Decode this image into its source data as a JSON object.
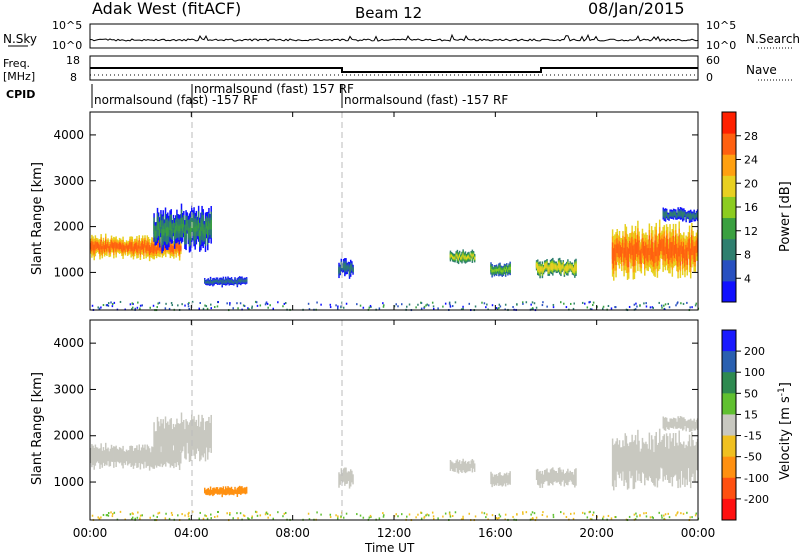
{
  "header": {
    "station": "Adak West (fitACF)",
    "beam": "Beam 12",
    "date": "08/Jan/2015"
  },
  "top_panel": {
    "left_label": "N.Sky",
    "left_ticks": [
      "10^5",
      "10^0"
    ],
    "right_label": "N.Search",
    "right_ticks": [
      "10^5",
      "10^0"
    ]
  },
  "freq_panel": {
    "left_label_1": "Freq.",
    "left_label_2": "[MHz]",
    "left_ticks": [
      "18",
      "8"
    ],
    "right_label": "Nave",
    "right_ticks": [
      "60",
      "0"
    ]
  },
  "cpid": {
    "label": "CPID",
    "segments": [
      {
        "text": "normalsound (fast) -157 RF",
        "row": 1
      },
      {
        "text": "normalsound (fast) 157 RF",
        "row": 0
      },
      {
        "text": "normalsound (fast) -157 RF",
        "row": 1
      }
    ],
    "boundaries_hours": [
      0,
      4.0,
      10.0
    ]
  },
  "x_axis": {
    "label": "Time UT",
    "ticks": [
      "00:00",
      "04:00",
      "08:00",
      "12:00",
      "16:00",
      "20:00",
      "00:00"
    ],
    "range_hours": [
      0,
      24
    ]
  },
  "power_panel": {
    "ylabel": "Slant Range [km]",
    "yticks": [
      "1000",
      "2000",
      "3000",
      "4000"
    ],
    "colorbar_label": "Power [dB]",
    "colorbar_ticks": [
      "4",
      "8",
      "12",
      "16",
      "20",
      "24",
      "28"
    ],
    "colors": [
      "#1010ff",
      "#2850c0",
      "#2f7f6f",
      "#3aa040",
      "#8ccc20",
      "#e8d020",
      "#ffa010",
      "#ff6010",
      "#ff2000"
    ]
  },
  "velocity_panel": {
    "ylabel": "Slant Range [km]",
    "yticks": [
      "1000",
      "2000",
      "3000",
      "4000"
    ],
    "colorbar_label": "Velocity [m s^-1]",
    "colorbar_ticks": [
      "200",
      "100",
      "50",
      "15",
      "-15",
      "-50",
      "-100",
      "-200"
    ],
    "colors": [
      "#1a1aff",
      "#2a60b0",
      "#2e8a50",
      "#60c030",
      "#c8c8c0",
      "#f0c020",
      "#ff9010",
      "#ff5010",
      "#ff1010"
    ]
  },
  "chart_data": {
    "type": "heatmap",
    "x_range_hours": [
      0,
      24
    ],
    "y_range_km": [
      180,
      4500
    ],
    "echo_regions": [
      {
        "name": "",
        "x": [
          0,
          3.6
        ],
        "y": [
          1300,
          1800
        ],
        "power_db": 26,
        "velocity": 0
      },
      {
        "name": "",
        "x": [
          2.5,
          4.8
        ],
        "y": [
          1500,
          2400
        ],
        "power_db": 10,
        "velocity": 0
      },
      {
        "name": "",
        "x": [
          4.5,
          6.2
        ],
        "y": [
          700,
          900
        ],
        "power_db": 6,
        "velocity": -60
      },
      {
        "name": "",
        "x": [
          9.8,
          10.4
        ],
        "y": [
          900,
          1300
        ],
        "power_db": 8,
        "velocity": 0
      },
      {
        "name": "",
        "x": [
          14.2,
          15.2
        ],
        "y": [
          1200,
          1500
        ],
        "power_db": 16,
        "velocity": 0
      },
      {
        "name": "",
        "x": [
          15.8,
          16.6
        ],
        "y": [
          900,
          1200
        ],
        "power_db": 14,
        "velocity": 0
      },
      {
        "name": "",
        "x": [
          17.6,
          19.2
        ],
        "y": [
          900,
          1300
        ],
        "power_db": 18,
        "velocity": 0
      },
      {
        "name": "",
        "x": [
          20.6,
          24
        ],
        "y": [
          900,
          2000
        ],
        "power_db": 26,
        "velocity": 0
      },
      {
        "name": "",
        "x": [
          22.6,
          24
        ],
        "y": [
          2100,
          2400
        ],
        "power_db": 8,
        "velocity": 0
      }
    ],
    "vertical_dashed_hours": [
      4.0,
      10.0
    ]
  }
}
